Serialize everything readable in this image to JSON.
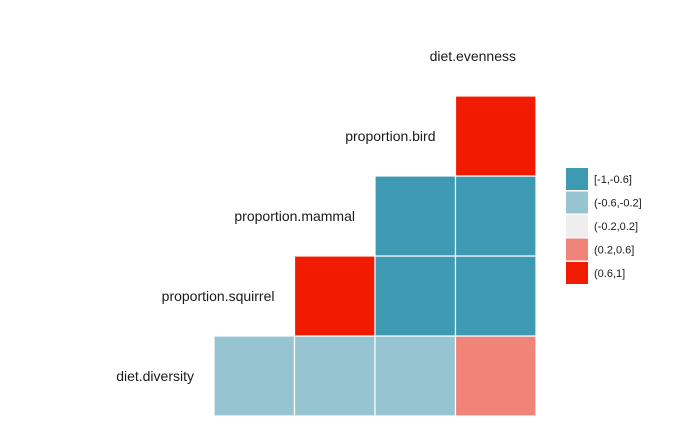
{
  "chart_data": {
    "type": "heatmap",
    "variables": [
      "diet.diversity",
      "proportion.squirrel",
      "proportion.mammal",
      "proportion.bird",
      "diet.evenness"
    ],
    "bins": [
      "[-1,-0.6]",
      "(-0.6,-0.2]",
      "(-0.2,0.2]",
      "(0.2,0.6]",
      "(0.6,1]"
    ],
    "colors": {
      "[-1,-0.6]": "#3d9ab2",
      "(-0.6,-0.2]": "#96c4d0",
      "(-0.2,0.2]": "#eeeeee",
      "(0.2,0.6]": "#f08478",
      "(0.6,1]": "#f11c00"
    },
    "cells": [
      {
        "row": "diet.diversity",
        "col": "proportion.squirrel",
        "bin": "(-0.6,-0.2]"
      },
      {
        "row": "diet.diversity",
        "col": "proportion.mammal",
        "bin": "(-0.6,-0.2]"
      },
      {
        "row": "diet.diversity",
        "col": "proportion.bird",
        "bin": "(-0.6,-0.2]"
      },
      {
        "row": "diet.diversity",
        "col": "diet.evenness",
        "bin": "(0.2,0.6]"
      },
      {
        "row": "proportion.squirrel",
        "col": "proportion.mammal",
        "bin": "(0.6,1]"
      },
      {
        "row": "proportion.squirrel",
        "col": "proportion.bird",
        "bin": "[-1,-0.6]"
      },
      {
        "row": "proportion.squirrel",
        "col": "diet.evenness",
        "bin": "[-1,-0.6]"
      },
      {
        "row": "proportion.mammal",
        "col": "proportion.bird",
        "bin": "[-1,-0.6]"
      },
      {
        "row": "proportion.mammal",
        "col": "diet.evenness",
        "bin": "[-1,-0.6]"
      },
      {
        "row": "proportion.bird",
        "col": "diet.evenness",
        "bin": "(0.6,1]"
      }
    ],
    "legend_position": "right"
  }
}
